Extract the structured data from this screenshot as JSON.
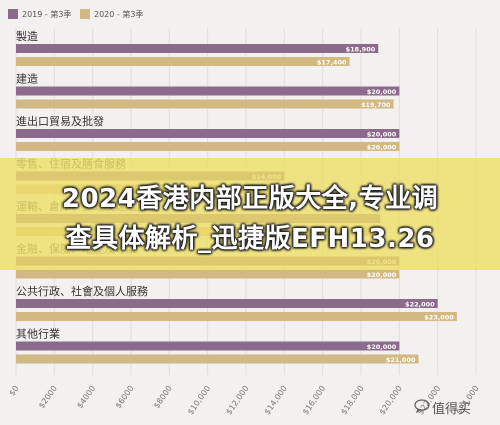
{
  "chart_data": {
    "type": "bar",
    "orientation": "horizontal",
    "categories": [
      "製造",
      "建造",
      "進出口貿易及批發",
      "零售、住宿及膳食服務",
      "運輸、倉庫、郵政及速遞服務",
      "金融、保險、地產及專業",
      "公共行政、社會及個人服務",
      "其他行業"
    ],
    "series": [
      {
        "name": "2019 - 第3季",
        "color": "#8c6a8b",
        "values": [
          18900,
          20000,
          20000,
          14000,
          19000,
          20000,
          22000,
          20000
        ]
      },
      {
        "name": "2020 - 第3季",
        "color": "#d2b882",
        "values": [
          17400,
          19700,
          20000,
          14000,
          18500,
          20000,
          23000,
          21000
        ]
      }
    ],
    "data_labels": {
      "2019 - 第3季": [
        "$18,900",
        "$20,000",
        "$20,000",
        "$14,000",
        "",
        "$20,000",
        "$22,000",
        "$20,000"
      ],
      "2020 - 第3季": [
        "$17,400",
        "$19,700",
        "$20,000",
        "$14,000",
        "",
        "$20,000",
        "$23,000",
        "$21,000"
      ]
    },
    "x_ticks": [
      "$0",
      "$2000",
      "$4000",
      "$6000",
      "$8000",
      "$10,000",
      "$12,000",
      "$14,000",
      "$16,000",
      "$18,000",
      "$20,000",
      "$22,000",
      "$24,000"
    ],
    "xlim": [
      0,
      24000
    ],
    "legend_position": "top-left",
    "grid": true
  },
  "overlay": {
    "line1": "2024香港内部正版大全,专业调",
    "line2": "查具体解析_迅捷版EFH13.26"
  },
  "watermark": {
    "text": "值得买",
    "icon": "chat-bubble-icon"
  }
}
